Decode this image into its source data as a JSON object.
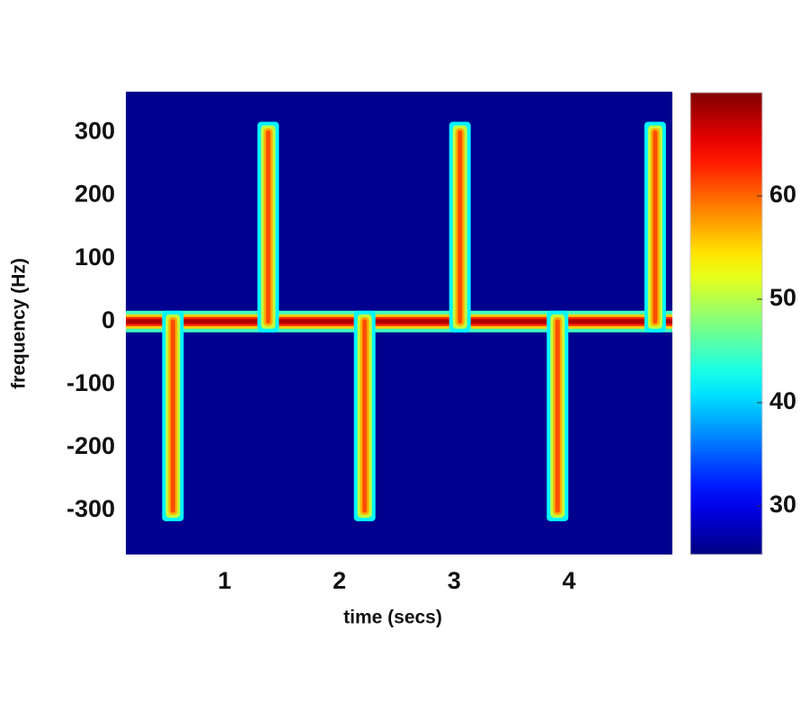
{
  "chart_data": {
    "type": "spectrogram",
    "xlabel": "time (secs)",
    "ylabel": "frequency (Hz)",
    "xlim": [
      0.14,
      4.9
    ],
    "ylim": [
      -370,
      365
    ],
    "xticks": [
      1,
      2,
      3,
      4
    ],
    "yticks": [
      -300,
      -200,
      -100,
      0,
      100,
      200,
      300
    ],
    "clim": [
      25.3,
      70
    ],
    "cticks": [
      30,
      40,
      50,
      60
    ],
    "colormap": "jet",
    "background_level": 26,
    "segments": [
      {
        "x": [
          0.14,
          4.9
        ],
        "y": [
          0,
          0
        ],
        "level": 68
      },
      {
        "x": [
          0.55,
          0.55
        ],
        "y": [
          0,
          -300
        ],
        "level": 61
      },
      {
        "x": [
          1.38,
          1.38
        ],
        "y": [
          0,
          300
        ],
        "level": 61
      },
      {
        "x": [
          2.22,
          2.22
        ],
        "y": [
          0,
          -300
        ],
        "level": 61
      },
      {
        "x": [
          3.05,
          3.05
        ],
        "y": [
          0,
          300
        ],
        "level": 61
      },
      {
        "x": [
          3.9,
          3.9
        ],
        "y": [
          0,
          -300
        ],
        "level": 61
      },
      {
        "x": [
          4.75,
          4.75
        ],
        "y": [
          0,
          300
        ],
        "level": 61
      }
    ]
  }
}
